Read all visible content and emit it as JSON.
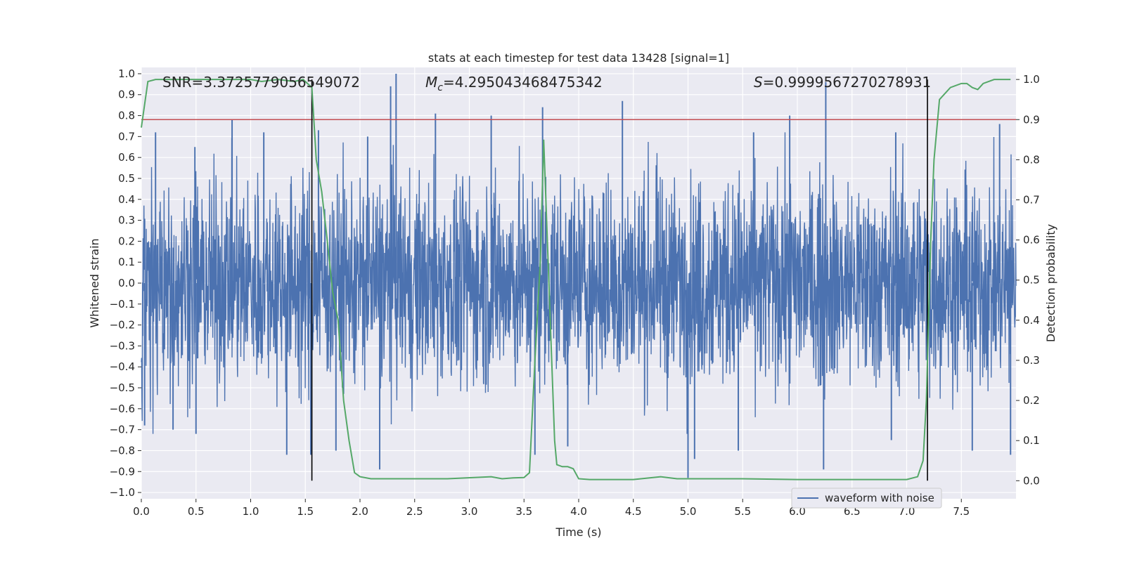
{
  "chart_data": {
    "type": "line",
    "title": "stats at each timestep for test data 13428 [signal=1]",
    "xlabel": "Time (s)",
    "ylabel": "Whitened strain",
    "y2label": "Detection probability",
    "xlim": [
      0,
      8.0
    ],
    "ylim": [
      -1.03,
      1.03
    ],
    "y2lim": [
      -0.045,
      1.03
    ],
    "x_ticks": [
      "0.0",
      "0.5",
      "1.0",
      "1.5",
      "2.0",
      "2.5",
      "3.0",
      "3.5",
      "4.0",
      "4.5",
      "5.0",
      "5.5",
      "6.0",
      "6.5",
      "7.0",
      "7.5"
    ],
    "y_ticks": [
      "1.0",
      "0.9",
      "0.8",
      "0.7",
      "0.6",
      "0.5",
      "0.4",
      "0.3",
      "0.2",
      "0.1",
      "0.0",
      "−0.1",
      "−0.2",
      "−0.3",
      "−0.4",
      "−0.5",
      "−0.6",
      "−0.7",
      "−0.8",
      "−0.9",
      "−1.0"
    ],
    "y2_ticks": [
      "0.0",
      "0.1",
      "0.2",
      "0.3",
      "0.4",
      "0.5",
      "0.6",
      "0.7",
      "0.8",
      "0.9",
      "1.0"
    ],
    "annotations": {
      "snr": "SNR=3.3725779056549072",
      "mc_symbol": "M",
      "mc_sub": "c",
      "mc_value": "=4.295043468475342",
      "s_symbol": "S",
      "s_value": "=0.9999567270278931"
    },
    "legend": {
      "label": "waveform with noise",
      "location": "lower right"
    },
    "threshold": {
      "axis": "y2",
      "value": 0.9,
      "color": "#c44e52"
    },
    "vertical_lines": [
      1.56,
      7.19
    ],
    "series": [
      {
        "name": "waveform with noise",
        "kind": "dense_noise",
        "color": "#4c72b0",
        "x_range": [
          0,
          8.0
        ],
        "typical_amplitude": 0.45,
        "peaks": [
          {
            "x": 0.13,
            "y": 0.72
          },
          {
            "x": 0.49,
            "y": 0.65
          },
          {
            "x": 0.83,
            "y": 0.78
          },
          {
            "x": 1.12,
            "y": 0.72
          },
          {
            "x": 1.62,
            "y": 0.73
          },
          {
            "x": 2.07,
            "y": 0.7
          },
          {
            "x": 2.28,
            "y": 0.94
          },
          {
            "x": 2.33,
            "y": 1.0
          },
          {
            "x": 2.69,
            "y": 0.81
          },
          {
            "x": 3.2,
            "y": 0.8
          },
          {
            "x": 3.67,
            "y": 0.84
          },
          {
            "x": 4.4,
            "y": 0.87
          },
          {
            "x": 5.6,
            "y": 0.72
          },
          {
            "x": 5.93,
            "y": 0.8
          },
          {
            "x": 6.26,
            "y": 0.96
          },
          {
            "x": 6.9,
            "y": 0.72
          },
          {
            "x": 7.85,
            "y": 0.76
          }
        ],
        "troughs": [
          {
            "x": 0.03,
            "y": -0.68
          },
          {
            "x": 0.29,
            "y": -0.7
          },
          {
            "x": 0.5,
            "y": -0.72
          },
          {
            "x": 1.33,
            "y": -0.82
          },
          {
            "x": 1.55,
            "y": -0.82
          },
          {
            "x": 1.78,
            "y": -0.8
          },
          {
            "x": 2.18,
            "y": -0.89
          },
          {
            "x": 3.6,
            "y": -0.82
          },
          {
            "x": 3.9,
            "y": -0.78
          },
          {
            "x": 5.0,
            "y": -0.93
          },
          {
            "x": 5.06,
            "y": -0.84
          },
          {
            "x": 5.46,
            "y": -0.8
          },
          {
            "x": 6.24,
            "y": -0.89
          },
          {
            "x": 6.86,
            "y": -0.75
          },
          {
            "x": 7.6,
            "y": -0.8
          },
          {
            "x": 7.95,
            "y": -0.82
          }
        ]
      },
      {
        "name": "detection probability",
        "axis": "y2",
        "color": "#55a868",
        "x": [
          0.0,
          0.06,
          0.13,
          0.3,
          0.6,
          1.0,
          1.1,
          1.25,
          1.4,
          1.48,
          1.52,
          1.56,
          1.6,
          1.65,
          1.7,
          1.75,
          1.8,
          1.85,
          1.9,
          1.95,
          2.0,
          2.1,
          2.4,
          2.8,
          3.2,
          3.3,
          3.4,
          3.5,
          3.55,
          3.6,
          3.65,
          3.68,
          3.72,
          3.78,
          3.8,
          3.85,
          3.9,
          3.95,
          4.0,
          4.1,
          4.5,
          4.75,
          4.9,
          5.1,
          5.5,
          6.0,
          6.5,
          7.0,
          7.1,
          7.15,
          7.18,
          7.2,
          7.22,
          7.25,
          7.3,
          7.4,
          7.5,
          7.55,
          7.6,
          7.65,
          7.7,
          7.8,
          7.95
        ],
        "y": [
          0.88,
          0.995,
          1.0,
          1.0,
          1.0,
          1.0,
          0.995,
          1.0,
          0.995,
          1.0,
          0.99,
          0.98,
          0.8,
          0.72,
          0.6,
          0.47,
          0.4,
          0.2,
          0.1,
          0.02,
          0.01,
          0.005,
          0.005,
          0.005,
          0.01,
          0.005,
          0.007,
          0.008,
          0.02,
          0.3,
          0.55,
          0.85,
          0.55,
          0.1,
          0.04,
          0.035,
          0.035,
          0.03,
          0.005,
          0.003,
          0.003,
          0.01,
          0.005,
          0.005,
          0.005,
          0.003,
          0.003,
          0.003,
          0.01,
          0.05,
          0.2,
          0.4,
          0.6,
          0.8,
          0.95,
          0.98,
          0.99,
          0.99,
          0.98,
          0.975,
          0.99,
          1.0,
          1.0
        ]
      }
    ]
  }
}
